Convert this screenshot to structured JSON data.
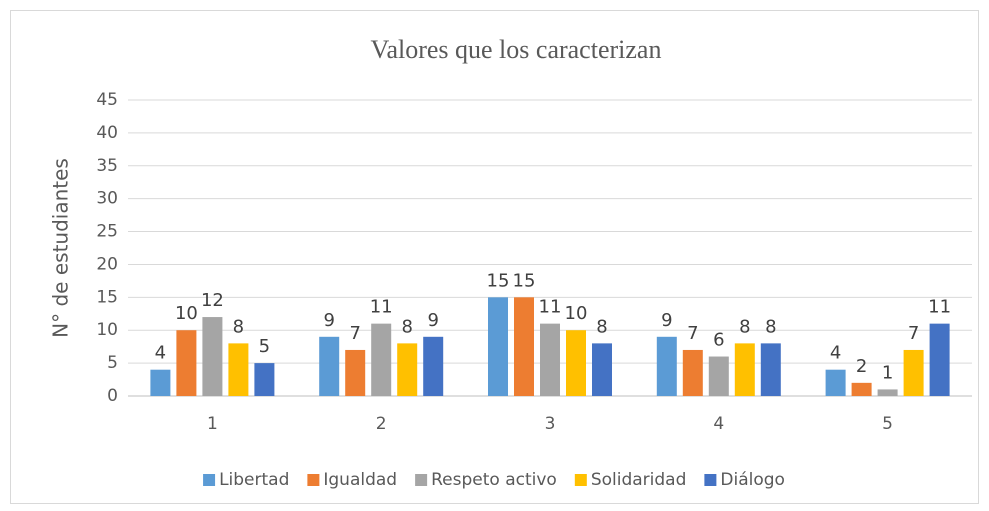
{
  "chart_data": {
    "type": "bar",
    "title": "Valores que los caracterizan",
    "ylabel": "N° de estudiantes",
    "categories": [
      "1",
      "2",
      "3",
      "4",
      "5"
    ],
    "series": [
      {
        "name": "Libertad",
        "color": "#5b9bd5",
        "values": [
          4,
          9,
          15,
          9,
          4
        ]
      },
      {
        "name": "Igualdad",
        "color": "#ed7d31",
        "values": [
          10,
          7,
          15,
          7,
          2
        ]
      },
      {
        "name": "Respeto activo",
        "color": "#a5a5a5",
        "values": [
          12,
          11,
          11,
          6,
          1
        ]
      },
      {
        "name": "Solidaridad",
        "color": "#ffc000",
        "values": [
          8,
          8,
          10,
          8,
          7
        ]
      },
      {
        "name": "Diálogo",
        "color": "#4472c4",
        "values": [
          5,
          9,
          8,
          8,
          11
        ]
      }
    ],
    "ylim": [
      0,
      45
    ],
    "yticks": [
      0,
      5,
      10,
      15,
      20,
      25,
      30,
      35,
      40,
      45
    ],
    "grid": true,
    "legend": "bottom",
    "data_labels": true
  }
}
